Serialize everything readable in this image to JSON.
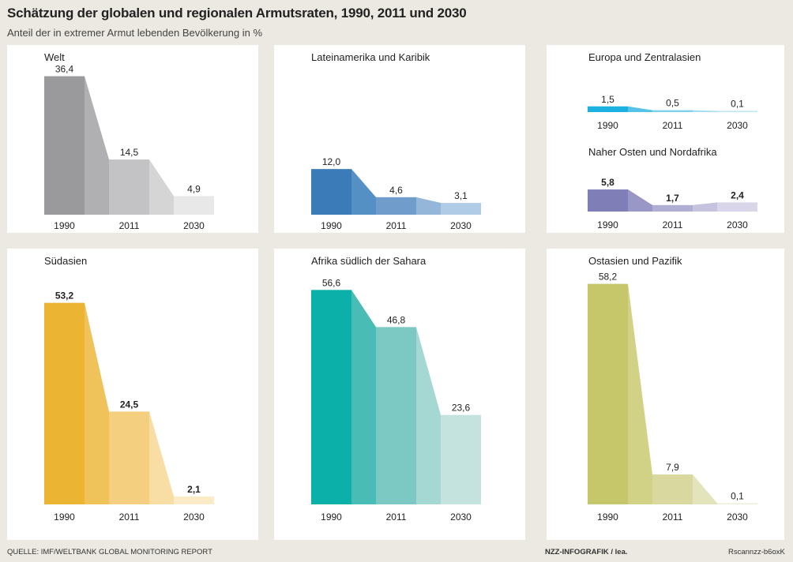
{
  "title": "Schätzung der globalen und regionalen Armutsraten, 1990, 2011 und 2030",
  "subtitle": "Anteil der in extremer Armut lebenden Bevölkerung in %",
  "footer": {
    "source": "QUELLE: IMF/WELTBANK GLOBAL MONITORING REPORT",
    "credit": "NZZ-INFOGRAFIK / lea.",
    "code": "Rscannzz-b6oxK"
  },
  "chart_data": [
    {
      "type": "area",
      "title": "Welt",
      "categories": [
        "1990",
        "2011",
        "2030"
      ],
      "values": [
        36.4,
        14.5,
        4.9
      ],
      "value_labels": [
        "36,4",
        "14,5",
        "4,9"
      ],
      "colors": [
        "#9a9a9c",
        "#c3c3c5",
        "#e8e8e9"
      ],
      "color_light": [
        "#b0b0b2",
        "#d5d5d6"
      ],
      "bold_labels": false
    },
    {
      "type": "area",
      "title": "Lateinamerika und Karibik",
      "categories": [
        "1990",
        "2011",
        "2030"
      ],
      "values": [
        12.0,
        4.6,
        3.1
      ],
      "value_labels": [
        "12,0",
        "4,6",
        "3,1"
      ],
      "colors": [
        "#3a7bb8",
        "#6f9ccb",
        "#b0cbe5"
      ],
      "color_light": [
        "#5590c5",
        "#93b6d9"
      ],
      "bold_labels": false
    },
    {
      "type": "area",
      "title": "Europa und Zentralasien",
      "categories": [
        "1990",
        "2011",
        "2030"
      ],
      "values": [
        1.5,
        0.5,
        0.1
      ],
      "value_labels": [
        "1,5",
        "0,5",
        "0,1"
      ],
      "colors": [
        "#1ab0e0",
        "#7fd0ec",
        "#bfe6f5"
      ],
      "color_light": [
        "#55c2e7",
        "#a6ddf1"
      ],
      "bold_labels": false
    },
    {
      "type": "area",
      "title": "Naher Osten und Nordafrika",
      "categories": [
        "1990",
        "2011",
        "2030"
      ],
      "values": [
        5.8,
        1.7,
        2.4
      ],
      "value_labels": [
        "5,8",
        "1,7",
        "2,4"
      ],
      "colors": [
        "#7f7eb6",
        "#b1aed4",
        "#d9d6ea"
      ],
      "color_light": [
        "#9897c5",
        "#c6c3df"
      ],
      "bold_labels": true
    },
    {
      "type": "area",
      "title": "Südasien",
      "categories": [
        "1990",
        "2011",
        "2030"
      ],
      "values": [
        53.2,
        24.5,
        2.1
      ],
      "value_labels": [
        "53,2",
        "24,5",
        "2,1"
      ],
      "colors": [
        "#ebb432",
        "#f4cf80",
        "#fcebc7"
      ],
      "color_light": [
        "#f0c25a",
        "#f8dea5"
      ],
      "bold_labels": true
    },
    {
      "type": "area",
      "title": "Afrika südlich der Sahara",
      "categories": [
        "1990",
        "2011",
        "2030"
      ],
      "values": [
        56.6,
        46.8,
        23.6
      ],
      "value_labels": [
        "56,6",
        "46,8",
        "23,6"
      ],
      "colors": [
        "#0bb0a8",
        "#7cc9c3",
        "#c4e3df"
      ],
      "color_light": [
        "#48bcb5",
        "#a5d8d3"
      ],
      "bold_labels": false
    },
    {
      "type": "area",
      "title": "Ostasien und Pazifik",
      "categories": [
        "1990",
        "2011",
        "2030"
      ],
      "values": [
        58.2,
        7.9,
        0.1
      ],
      "value_labels": [
        "58,2",
        "7,9",
        "0,1"
      ],
      "colors": [
        "#c5c76a",
        "#d9d99f",
        "#eceed5"
      ],
      "color_light": [
        "#d1d286",
        "#e3e4bb"
      ],
      "bold_labels": false
    }
  ]
}
